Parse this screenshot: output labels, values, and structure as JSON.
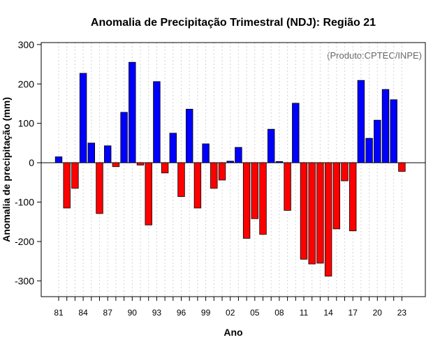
{
  "chart_data": {
    "type": "bar",
    "title": "Anomalia de Precipitação Trimestral (NDJ): Região 21",
    "xlabel": "Ano",
    "ylabel": "Anomalia de precipitação (mm)",
    "credit": "(Produto:CPTEC/INPE)",
    "ylim": [
      -340,
      305
    ],
    "yticks": [
      -300,
      -200,
      -100,
      0,
      100,
      200,
      300
    ],
    "xtick_labels": [
      "81",
      "84",
      "87",
      "90",
      "93",
      "96",
      "99",
      "02",
      "05",
      "08",
      "11",
      "14",
      "17",
      "20",
      "23"
    ],
    "grid": true,
    "categories": [
      "81",
      "82",
      "83",
      "84",
      "85",
      "86",
      "87",
      "88",
      "89",
      "90",
      "91",
      "92",
      "93",
      "94",
      "95",
      "96",
      "97",
      "98",
      "99",
      "00",
      "01",
      "02",
      "03",
      "04",
      "05",
      "06",
      "07",
      "08",
      "09",
      "10",
      "11",
      "12",
      "13",
      "14",
      "15",
      "16",
      "17",
      "18",
      "19",
      "20",
      "21",
      "22",
      "23"
    ],
    "values": [
      15,
      -115,
      -65,
      227,
      50,
      -129,
      43,
      -10,
      128,
      255,
      -6,
      -158,
      206,
      -26,
      75,
      -86,
      136,
      -115,
      48,
      -65,
      -44,
      4,
      39,
      -192,
      -142,
      -182,
      85,
      3,
      -121,
      151,
      -245,
      -257,
      -255,
      -288,
      -168,
      -46,
      -173,
      209,
      62,
      108,
      186,
      160,
      -22
    ],
    "colors": {
      "positive": "#0000ff",
      "negative": "#ff0000",
      "zero_line": "#000000",
      "grid": "#d3d3d3"
    }
  }
}
